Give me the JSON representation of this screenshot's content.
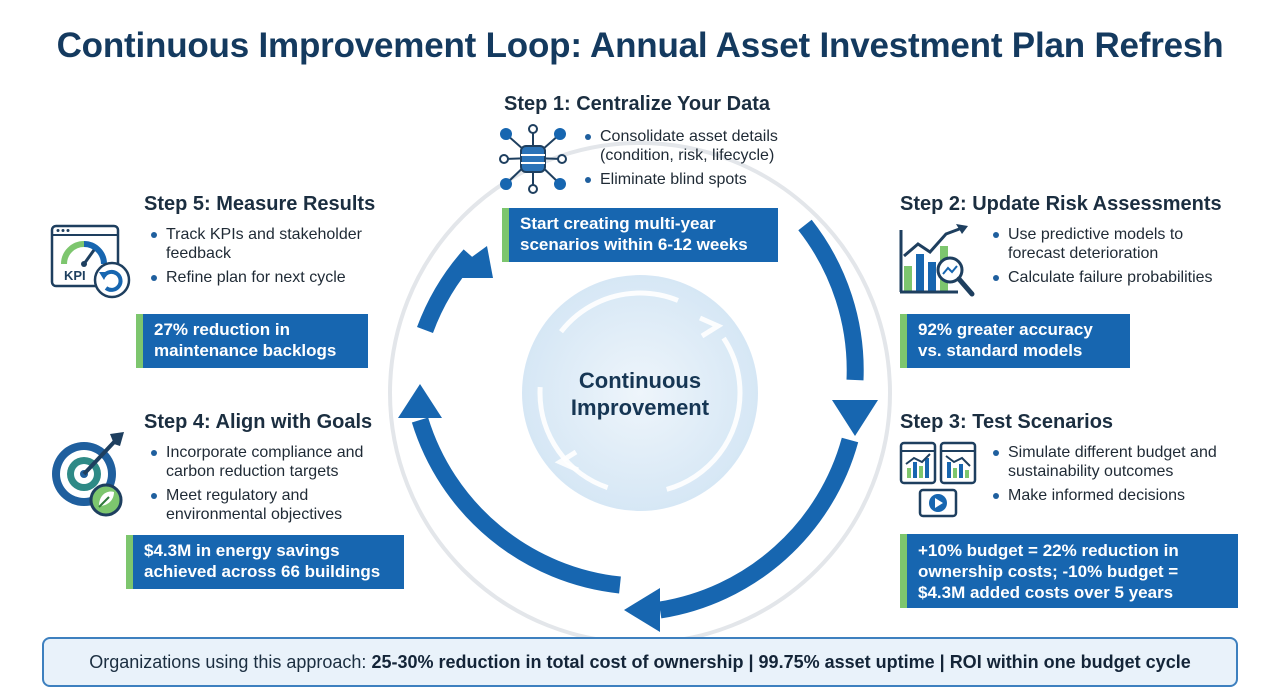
{
  "title": "Continuous Improvement Loop: Annual Asset Investment Plan Refresh",
  "center": {
    "line1": "Continuous",
    "line2": "Improvement"
  },
  "steps": [
    {
      "title": "Step 1: Centralize Your Data",
      "bullets": [
        "Consolidate asset details (condition, risk, lifecycle)",
        "Eliminate blind spots"
      ],
      "callout": [
        "Start creating multi-year",
        "scenarios within 6-12 weeks"
      ],
      "icon": "database-network-icon"
    },
    {
      "title": "Step 2: Update Risk Assessments",
      "bullets": [
        "Use predictive models to forecast deterioration",
        "Calculate failure probabilities"
      ],
      "callout": [
        "92% greater accuracy",
        "vs. standard models"
      ],
      "icon": "chart-magnifier-icon"
    },
    {
      "title": "Step 3: Test Scenarios",
      "bullets": [
        "Simulate different budget and sustainability outcomes",
        "Make informed decisions"
      ],
      "callout": [
        "+10% budget = 22% reduction in",
        "ownership costs; -10% budget =",
        "$4.3M added costs over 5 years"
      ],
      "icon": "scenario-dashboards-icon"
    },
    {
      "title": "Step 4: Align with Goals",
      "bullets": [
        "Incorporate compliance and carbon reduction targets",
        "Meet regulatory and environmental objectives"
      ],
      "callout": [
        "$4.3M in energy savings",
        "achieved across 66 buildings"
      ],
      "icon": "target-leaf-icon"
    },
    {
      "title": "Step 5: Measure Results",
      "bullets": [
        "Track KPIs and stakeholder feedback",
        "Refine plan for next cycle"
      ],
      "callout": [
        "27% reduction in",
        "maintenance backlogs"
      ],
      "icon": "kpi-gauge-icon",
      "icon_text": "KPI"
    }
  ],
  "banner": {
    "prefix": "Organizations using this approach: ",
    "stat1": "25-30% reduction in total cost of ownership",
    "sep1": " | ",
    "stat2": "99.75% asset uptime",
    "sep2": " | ",
    "stat3": "ROI within one budget cycle"
  },
  "colors": {
    "primary": "#1766b0",
    "accent_green": "#7dc66e",
    "title": "#143a5f",
    "banner_bg": "#e9f2fa"
  }
}
